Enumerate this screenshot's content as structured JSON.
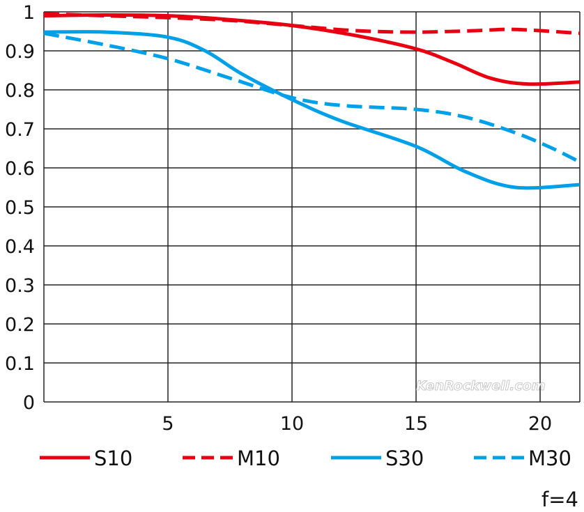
{
  "chart_data": {
    "type": "line",
    "title": "",
    "xlabel": "",
    "ylabel": "",
    "xlim": [
      0,
      21.6
    ],
    "ylim": [
      0,
      1
    ],
    "grid": true,
    "legend_position": "bottom",
    "x_ticks": [
      "5",
      "10",
      "15",
      "20"
    ],
    "x_tick_values": [
      5,
      10,
      15,
      20
    ],
    "y_ticks": [
      "0",
      "0.1",
      "0.2",
      "0.3",
      "0.4",
      "0.5",
      "0.6",
      "0.7",
      "0.8",
      "0.9",
      "1"
    ],
    "y_tick_values": [
      0,
      0.1,
      0.2,
      0.3,
      0.4,
      0.5,
      0.6,
      0.7,
      0.8,
      0.9,
      1
    ],
    "annotation": "f=4",
    "watermark": "KenRockwell.com",
    "series": [
      {
        "name": "S10",
        "color": "#e60012",
        "dashed": false,
        "x": [
          0,
          2.5,
          5,
          7.5,
          10,
          12.5,
          15,
          16.5,
          18,
          19.5,
          21.6
        ],
        "y": [
          0.99,
          0.992,
          0.99,
          0.98,
          0.965,
          0.94,
          0.905,
          0.87,
          0.83,
          0.815,
          0.82
        ]
      },
      {
        "name": "M10",
        "color": "#e60012",
        "dashed": true,
        "x": [
          0,
          2.5,
          5,
          7.5,
          10,
          12.5,
          15,
          17.5,
          19,
          21.6
        ],
        "y": [
          0.995,
          0.99,
          0.985,
          0.978,
          0.965,
          0.952,
          0.948,
          0.952,
          0.955,
          0.945
        ]
      },
      {
        "name": "S30",
        "color": "#00a0e9",
        "dashed": false,
        "x": [
          0,
          2.5,
          5,
          6.5,
          8,
          10,
          12,
          15,
          17,
          19,
          21.6
        ],
        "y": [
          0.948,
          0.948,
          0.935,
          0.9,
          0.84,
          0.775,
          0.72,
          0.655,
          0.59,
          0.55,
          0.557
        ]
      },
      {
        "name": "M30",
        "color": "#00a0e9",
        "dashed": true,
        "x": [
          0,
          2.5,
          5,
          7.5,
          10,
          12,
          15,
          17,
          19,
          20.5,
          21.6
        ],
        "y": [
          0.945,
          0.915,
          0.88,
          0.83,
          0.78,
          0.76,
          0.75,
          0.73,
          0.69,
          0.65,
          0.615
        ]
      }
    ]
  }
}
